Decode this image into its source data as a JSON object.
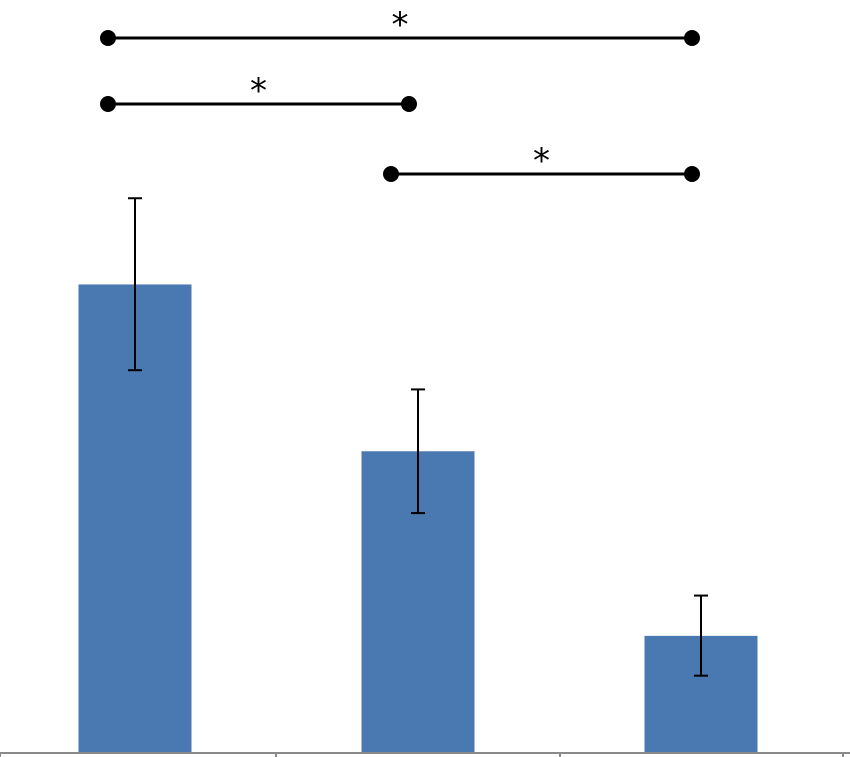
{
  "chart_data": {
    "type": "bar",
    "title": "",
    "xlabel": "",
    "ylabel": "",
    "categories": [
      "",
      "",
      ""
    ],
    "values": [
      100,
      64.4,
      25.0
    ],
    "error_low": [
      81.7,
      51.2,
      16.5
    ],
    "error_high": [
      118.4,
      77.6,
      33.6
    ],
    "ylim": [
      0,
      124
    ],
    "bar_color": "#4a78b0",
    "grid": false,
    "legend": "none",
    "significance": [
      {
        "from": 0,
        "to": 2,
        "label": "*"
      },
      {
        "from": 0,
        "to": 1,
        "label": "*"
      },
      {
        "from": 1,
        "to": 2,
        "label": "*"
      }
    ]
  }
}
